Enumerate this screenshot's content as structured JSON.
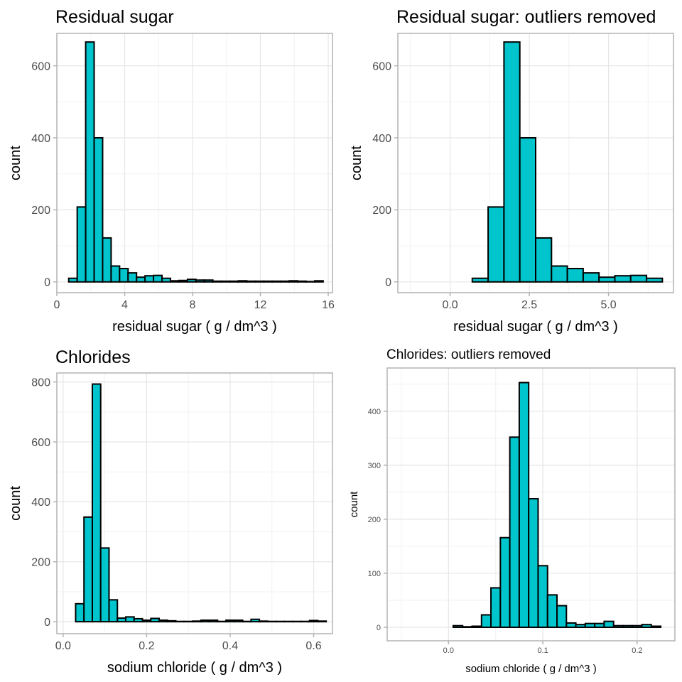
{
  "colors": {
    "bar_fill": "#00c5cd",
    "bar_stroke": "#000000",
    "panel_border": "#b3b3b3",
    "grid_major": "#e6e6e6",
    "grid_minor": "#f2f2f2",
    "axis_text": "#4d4d4d",
    "title_text": "#000000"
  },
  "chart_data": [
    {
      "type": "bar",
      "title": "Residual sugar",
      "xlabel": "residual sugar ( g / dm^3 )",
      "ylabel": "count",
      "xlim": [
        0,
        16.25
      ],
      "ylim": [
        -30,
        690
      ],
      "xticks": [
        0,
        4,
        8,
        12,
        16
      ],
      "xtick_labels": [
        "0",
        "4",
        "8",
        "12",
        "16"
      ],
      "yticks": [
        0,
        200,
        400,
        600
      ],
      "ytick_labels": [
        "0",
        "200",
        "400",
        "600"
      ],
      "grid": true,
      "bin_width": 0.5,
      "x": [
        0.95,
        1.45,
        1.95,
        2.45,
        2.95,
        3.45,
        3.95,
        4.45,
        4.95,
        5.45,
        5.95,
        6.45,
        6.95,
        7.45,
        7.95,
        8.45,
        8.95,
        9.45,
        9.95,
        10.45,
        10.95,
        11.45,
        11.95,
        12.45,
        12.95,
        13.45,
        13.95,
        14.45,
        14.95,
        15.45
      ],
      "values": [
        10,
        208,
        666,
        400,
        122,
        44,
        37,
        25,
        13,
        17,
        18,
        10,
        3,
        4,
        7,
        5,
        5,
        2,
        2,
        2,
        3,
        2,
        2,
        2,
        2,
        2,
        3,
        2,
        1,
        3
      ]
    },
    {
      "type": "bar",
      "title": "Residual sugar: outliers removed",
      "xlabel": "residual sugar ( g / dm^3 )",
      "ylabel": "count",
      "xlim": [
        -1.65,
        7.05
      ],
      "ylim": [
        -30,
        690
      ],
      "xticks": [
        0,
        2.5,
        5
      ],
      "xtick_labels": [
        "0.0",
        "2.5",
        "5.0"
      ],
      "yticks": [
        0,
        200,
        400,
        600
      ],
      "ytick_labels": [
        "0",
        "200",
        "400",
        "600"
      ],
      "grid": true,
      "bin_width": 0.5,
      "x": [
        -1.05,
        -0.55,
        -0.05,
        0.45,
        0.95,
        1.45,
        1.95,
        2.45,
        2.95,
        3.45,
        3.95,
        4.45,
        4.95,
        5.45,
        5.95,
        6.45
      ],
      "values": [
        0,
        0,
        0,
        0,
        10,
        208,
        666,
        400,
        122,
        44,
        37,
        25,
        13,
        17,
        18,
        10
      ]
    },
    {
      "type": "bar",
      "title": "Chlorides",
      "xlabel": "sodium chloride ( g / dm^3 )",
      "ylabel": "count",
      "xlim": [
        -0.015,
        0.645
      ],
      "ylim": [
        -40,
        830
      ],
      "xticks": [
        0,
        0.2,
        0.4,
        0.6
      ],
      "xtick_labels": [
        "0.0",
        "0.2",
        "0.4",
        "0.6"
      ],
      "yticks": [
        0,
        200,
        400,
        600,
        800
      ],
      "ytick_labels": [
        "0",
        "200",
        "400",
        "600",
        "800"
      ],
      "grid": true,
      "bin_width": 0.02,
      "x": [
        0.02,
        0.04,
        0.06,
        0.08,
        0.1,
        0.12,
        0.14,
        0.16,
        0.18,
        0.2,
        0.22,
        0.24,
        0.26,
        0.28,
        0.3,
        0.32,
        0.34,
        0.36,
        0.38,
        0.4,
        0.42,
        0.44,
        0.46,
        0.48,
        0.5,
        0.52,
        0.54,
        0.56,
        0.58,
        0.6,
        0.62
      ],
      "values": [
        0,
        60,
        349,
        793,
        246,
        73,
        12,
        16,
        10,
        5,
        11,
        5,
        3,
        1,
        1,
        2,
        5,
        5,
        1,
        5,
        5,
        1,
        8,
        2,
        1,
        1,
        1,
        1,
        1,
        4,
        2
      ]
    },
    {
      "type": "bar",
      "title": "Chlorides: outliers removed",
      "xlabel": "sodium chloride ( g / dm^3 )",
      "ylabel": "count",
      "xlim": [
        -0.065,
        0.24
      ],
      "ylim": [
        -25,
        480
      ],
      "xticks": [
        0,
        0.1,
        0.2
      ],
      "xtick_labels": [
        "0.0",
        "0.1",
        "0.2"
      ],
      "yticks": [
        0,
        100,
        200,
        300,
        400
      ],
      "ytick_labels": [
        "0",
        "100",
        "200",
        "300",
        "400"
      ],
      "grid": true,
      "bin_width": 0.01,
      "x": [
        -0.04,
        -0.03,
        -0.02,
        -0.01,
        0.0,
        0.01,
        0.02,
        0.03,
        0.04,
        0.05,
        0.06,
        0.07,
        0.08,
        0.09,
        0.1,
        0.11,
        0.12,
        0.13,
        0.14,
        0.15,
        0.16,
        0.17,
        0.18,
        0.19,
        0.2,
        0.21,
        0.22
      ],
      "values": [
        0,
        0,
        0,
        0,
        0,
        3,
        1,
        2,
        23,
        73,
        166,
        352,
        453,
        238,
        114,
        60,
        40,
        8,
        5,
        7,
        7,
        11,
        3,
        3,
        3,
        5,
        2
      ]
    }
  ]
}
